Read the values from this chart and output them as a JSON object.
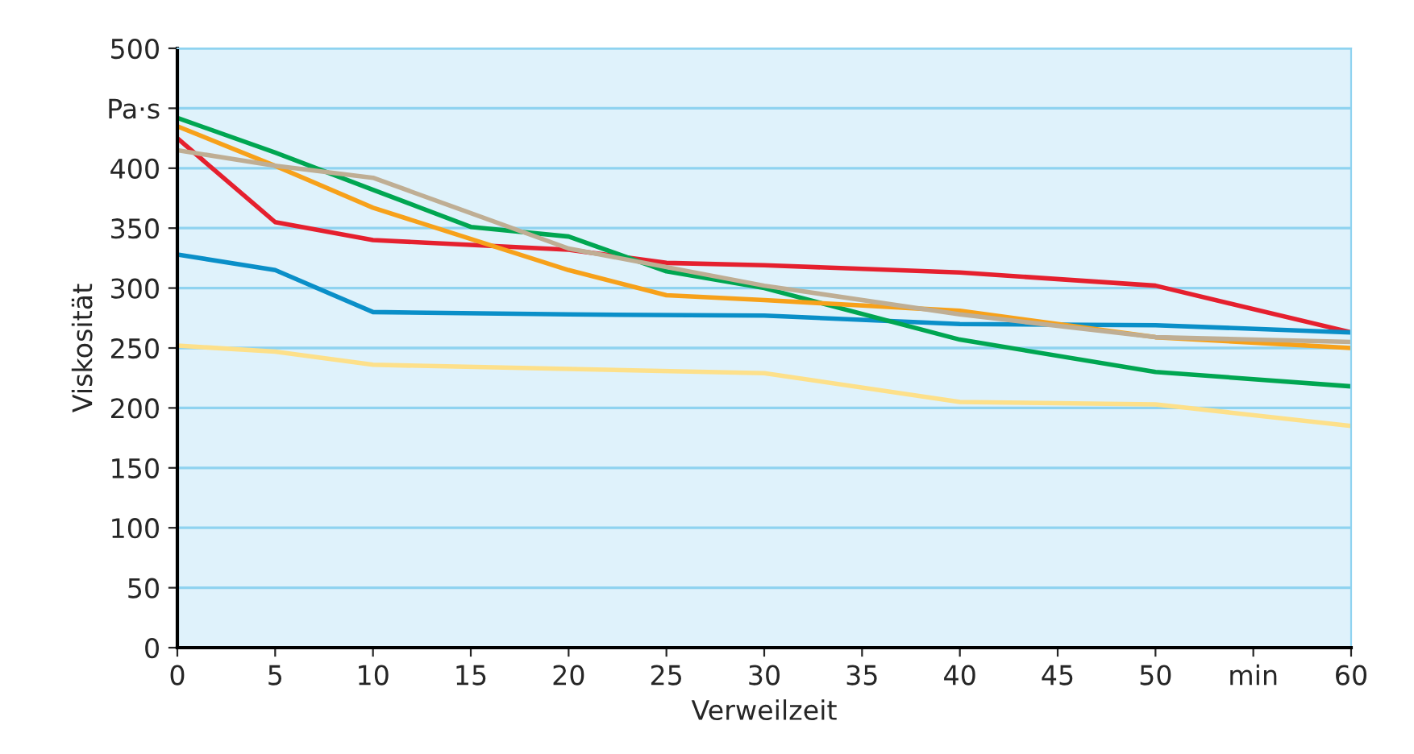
{
  "chart_data": {
    "type": "line",
    "xlabel": "Verweilzeit",
    "ylabel": "Viskosität",
    "xlim": [
      0,
      60
    ],
    "xticks": [
      0,
      5,
      10,
      15,
      20,
      25,
      30,
      35,
      40,
      45,
      50,
      {
        "value": 55,
        "label": "min"
      },
      60
    ],
    "ylim": [
      0,
      500
    ],
    "yticks": [
      0,
      50,
      100,
      150,
      200,
      250,
      300,
      350,
      400,
      {
        "value": 450,
        "label": "Pa·s"
      },
      500
    ],
    "grid": "y",
    "marker": "none",
    "line_style": "solid",
    "series": [
      {
        "color": "#e5202e",
        "x": [
          0,
          5,
          10,
          20,
          25,
          30,
          40,
          50,
          60
        ],
        "values": [
          425,
          355,
          340,
          332,
          321,
          319,
          313,
          302,
          263
        ]
      },
      {
        "color": "#0a8fc8",
        "x": [
          0,
          5,
          10,
          20,
          30,
          40,
          50,
          60
        ],
        "values": [
          328,
          315,
          280,
          278,
          277,
          270,
          269,
          263
        ]
      },
      {
        "color": "#fde08a",
        "x": [
          0,
          5,
          10,
          30,
          40,
          50,
          60
        ],
        "values": [
          252,
          247,
          236,
          229,
          205,
          203,
          185
        ]
      },
      {
        "color": "#00a651",
        "x": [
          0,
          5,
          10,
          15,
          20,
          25,
          30,
          40,
          50,
          60
        ],
        "values": [
          442,
          413,
          382,
          351,
          343,
          314,
          300,
          257,
          230,
          218
        ]
      },
      {
        "color": "#f7a11a",
        "x": [
          0,
          5,
          10,
          20,
          25,
          30,
          40,
          50,
          60
        ],
        "values": [
          435,
          402,
          367,
          315,
          294,
          290,
          281,
          259,
          250
        ]
      },
      {
        "color": "#bfae94",
        "x": [
          0,
          5,
          10,
          20,
          30,
          40,
          50,
          60
        ],
        "values": [
          415,
          402,
          392,
          333,
          302,
          278,
          259,
          255
        ]
      }
    ]
  }
}
